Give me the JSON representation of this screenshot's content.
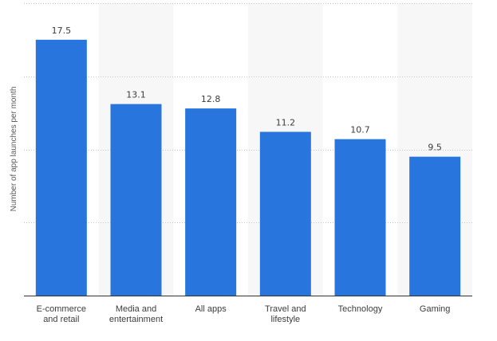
{
  "chart_data": {
    "type": "bar",
    "title": "",
    "xlabel": "",
    "ylabel": "Number of app launches per month",
    "categories": [
      [
        "E-commerce",
        "and retail"
      ],
      [
        "Media and",
        "entertainment"
      ],
      [
        "All apps"
      ],
      [
        "Travel and",
        "lifestyle"
      ],
      [
        "Technology"
      ],
      [
        "Gaming"
      ]
    ],
    "values": [
      17.5,
      13.1,
      12.8,
      11.2,
      10.7,
      9.5
    ],
    "value_labels": [
      "17.5",
      "13.1",
      "12.8",
      "11.2",
      "10.7",
      "9.5"
    ],
    "ylim": [
      0,
      20
    ],
    "gridlines": [
      5,
      10,
      15,
      20
    ],
    "grid": true,
    "alternating_band_background": true,
    "colors": {
      "bar": "#2876dd",
      "band": "#f7f7f7",
      "grid": "#c8c8c8",
      "axis": "#333333"
    }
  }
}
